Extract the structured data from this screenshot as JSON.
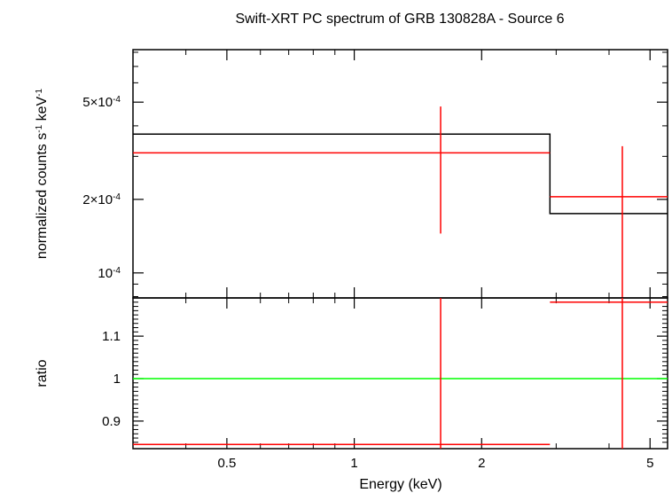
{
  "chart_data": [
    {
      "type": "line",
      "panel": "spectrum",
      "title": "Swift-XRT PC spectrum of GRB 130828A - Source 6",
      "ylabel_main": "normalized counts s",
      "ylabel_sup1": "-1",
      "ylabel_mid": " keV",
      "ylabel_sup2": "-1",
      "x_scale": "log",
      "y_scale": "log",
      "xlim": [
        0.3,
        5.5
      ],
      "ylim": [
        7.9e-05,
        0.00082
      ],
      "y_ticks": [
        {
          "value": 0.0001,
          "mant": "10",
          "exp": "-4"
        },
        {
          "value": 0.0002,
          "mant": "2×10",
          "exp": "-4"
        },
        {
          "value": 0.0005,
          "mant": "5×10",
          "exp": "-4"
        }
      ],
      "series": [
        {
          "kind": "model",
          "color": "#000000",
          "steps": [
            {
              "x0": 0.3,
              "x1": 2.9,
              "y": 0.00037
            },
            {
              "x0": 2.9,
              "x1": 5.5,
              "y": 0.000175
            }
          ]
        },
        {
          "kind": "data",
          "color": "#ff0000",
          "points": [
            {
              "x": 1.6,
              "xlo": 0.3,
              "xhi": 2.9,
              "y": 0.00031,
              "ylo": 0.000145,
              "yhi": 0.00048
            },
            {
              "x": 4.3,
              "xlo": 2.9,
              "xhi": 5.5,
              "y": 0.000205,
              "ylo": 7e-05,
              "yhi": 0.00033
            }
          ]
        }
      ]
    },
    {
      "type": "line",
      "panel": "ratio",
      "xlabel": "Energy (keV)",
      "ylabel": "ratio",
      "x_scale": "log",
      "xlim": [
        0.3,
        5.5
      ],
      "ylim": [
        0.835,
        1.19
      ],
      "x_ticks": [
        {
          "value": 0.5,
          "label": "0.5"
        },
        {
          "value": 1,
          "label": "1"
        },
        {
          "value": 2,
          "label": "2"
        },
        {
          "value": 5,
          "label": "5"
        }
      ],
      "y_ticks": [
        {
          "value": 0.9,
          "label": "0.9"
        },
        {
          "value": 1.0,
          "label": "1"
        },
        {
          "value": 1.1,
          "label": "1.1"
        }
      ],
      "series": [
        {
          "kind": "unity",
          "color": "#00ff00",
          "y": 1.0
        },
        {
          "kind": "data",
          "color": "#ff0000",
          "points": [
            {
              "x": 1.6,
              "xlo": 0.3,
              "xhi": 2.9,
              "y": 0.845,
              "ylo": 0.7,
              "yhi": 1.3
            },
            {
              "x": 4.3,
              "xlo": 2.9,
              "xhi": 5.5,
              "y": 1.18,
              "ylo": 0.7,
              "yhi": 1.3
            }
          ]
        }
      ]
    }
  ]
}
